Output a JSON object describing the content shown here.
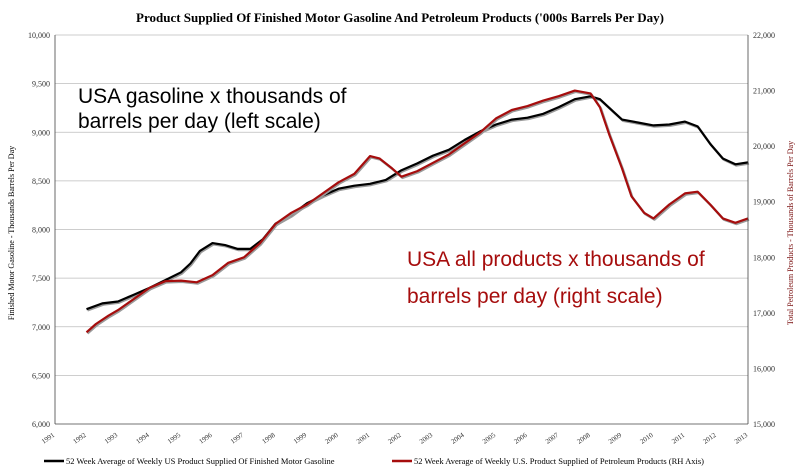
{
  "chart_data": {
    "type": "line",
    "title": "Product Supplied Of Finished Motor Gasoline And Petroleum Products ('000s Barrels Per Day)",
    "ylabel_left": "Finished Motor Gasoline - Thousands Barrels Per Day",
    "ylabel_right": "Total Petroleum Products - Thousands of Barrels Per Day",
    "x_ticks": [
      "1991",
      "1992",
      "1993",
      "1994",
      "1995",
      "1996",
      "1997",
      "1998",
      "1999",
      "2000",
      "2001",
      "2002",
      "2003",
      "2004",
      "2005",
      "2006",
      "2007",
      "2008",
      "2009",
      "2010",
      "2011",
      "2012",
      "2013"
    ],
    "xlim": [
      1991,
      2013
    ],
    "ylim_left": [
      6000,
      10000
    ],
    "ylim_right": [
      15000,
      22000
    ],
    "y_ticks_left": [
      "6,000",
      "6,500",
      "7,000",
      "7,500",
      "8,000",
      "8,500",
      "9,000",
      "9,500",
      "10,000"
    ],
    "y_ticks_right": [
      "15,000",
      "16,000",
      "17,000",
      "18,000",
      "19,000",
      "20,000",
      "21,000",
      "22,000"
    ],
    "grid": true,
    "legend_position": "bottom",
    "series": [
      {
        "name": "52 Week Average of Weekly US Product Supplied Of Finished Motor Gasoline",
        "axis": "left",
        "color": "#000000",
        "points": [
          [
            1992.0,
            7180
          ],
          [
            1992.5,
            7240
          ],
          [
            1993.0,
            7260
          ],
          [
            1993.5,
            7330
          ],
          [
            1994.0,
            7400
          ],
          [
            1994.5,
            7480
          ],
          [
            1995.0,
            7560
          ],
          [
            1995.3,
            7650
          ],
          [
            1995.6,
            7780
          ],
          [
            1996.0,
            7860
          ],
          [
            1996.4,
            7840
          ],
          [
            1996.8,
            7800
          ],
          [
            1997.2,
            7800
          ],
          [
            1997.6,
            7900
          ],
          [
            1998.0,
            8060
          ],
          [
            1998.5,
            8150
          ],
          [
            1999.0,
            8270
          ],
          [
            1999.5,
            8350
          ],
          [
            2000.0,
            8420
          ],
          [
            2000.5,
            8450
          ],
          [
            2001.0,
            8470
          ],
          [
            2001.5,
            8510
          ],
          [
            2002.0,
            8610
          ],
          [
            2002.5,
            8680
          ],
          [
            2003.0,
            8760
          ],
          [
            2003.5,
            8820
          ],
          [
            2004.0,
            8920
          ],
          [
            2004.5,
            9010
          ],
          [
            2005.0,
            9080
          ],
          [
            2005.5,
            9130
          ],
          [
            2006.0,
            9150
          ],
          [
            2006.5,
            9190
          ],
          [
            2007.0,
            9260
          ],
          [
            2007.5,
            9340
          ],
          [
            2008.0,
            9370
          ],
          [
            2008.3,
            9340
          ],
          [
            2008.7,
            9220
          ],
          [
            2009.0,
            9130
          ],
          [
            2009.5,
            9100
          ],
          [
            2010.0,
            9070
          ],
          [
            2010.5,
            9080
          ],
          [
            2011.0,
            9110
          ],
          [
            2011.4,
            9060
          ],
          [
            2011.8,
            8880
          ],
          [
            2012.2,
            8730
          ],
          [
            2012.6,
            8670
          ],
          [
            2013.0,
            8690
          ]
        ]
      },
      {
        "name": "52 Week Average of Weekly U.S. Product Supplied of Petroleum Products (RH Axis)",
        "axis": "right",
        "color": "#a60d0d",
        "points": [
          [
            1992.0,
            16650
          ],
          [
            1992.3,
            16800
          ],
          [
            1992.7,
            16950
          ],
          [
            1993.0,
            17050
          ],
          [
            1993.5,
            17250
          ],
          [
            1994.0,
            17450
          ],
          [
            1994.5,
            17570
          ],
          [
            1995.0,
            17580
          ],
          [
            1995.5,
            17550
          ],
          [
            1996.0,
            17680
          ],
          [
            1996.5,
            17900
          ],
          [
            1997.0,
            18000
          ],
          [
            1997.5,
            18250
          ],
          [
            1998.0,
            18600
          ],
          [
            1998.5,
            18800
          ],
          [
            1999.0,
            18950
          ],
          [
            1999.5,
            19150
          ],
          [
            2000.0,
            19350
          ],
          [
            2000.5,
            19500
          ],
          [
            2001.0,
            19820
          ],
          [
            2001.3,
            19780
          ],
          [
            2001.7,
            19600
          ],
          [
            2002.0,
            19450
          ],
          [
            2002.5,
            19550
          ],
          [
            2003.0,
            19700
          ],
          [
            2003.5,
            19850
          ],
          [
            2004.0,
            20050
          ],
          [
            2004.5,
            20250
          ],
          [
            2005.0,
            20500
          ],
          [
            2005.5,
            20650
          ],
          [
            2006.0,
            20720
          ],
          [
            2006.5,
            20820
          ],
          [
            2007.0,
            20900
          ],
          [
            2007.5,
            21000
          ],
          [
            2008.0,
            20950
          ],
          [
            2008.3,
            20700
          ],
          [
            2008.6,
            20200
          ],
          [
            2009.0,
            19600
          ],
          [
            2009.3,
            19100
          ],
          [
            2009.7,
            18800
          ],
          [
            2010.0,
            18700
          ],
          [
            2010.5,
            18950
          ],
          [
            2011.0,
            19150
          ],
          [
            2011.4,
            19180
          ],
          [
            2011.8,
            18950
          ],
          [
            2012.2,
            18700
          ],
          [
            2012.6,
            18620
          ],
          [
            2013.0,
            18700
          ]
        ]
      }
    ],
    "annotations": [
      {
        "text_lines": [
          "USA gasoline x thousands of",
          "barrels per day (left scale)"
        ],
        "color": "#000000"
      },
      {
        "text_lines": [
          "USA all products x thousands of",
          "barrels per day (right scale)"
        ],
        "color": "#a60d0d"
      }
    ]
  }
}
